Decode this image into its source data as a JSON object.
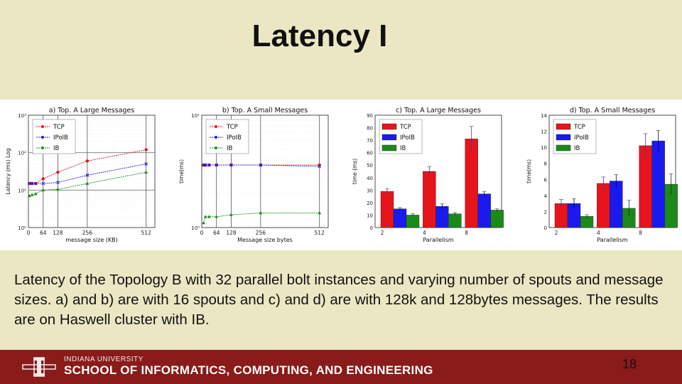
{
  "slide": {
    "title": "Latency I",
    "caption": "Latency of the Topology B with 32 parallel bolt instances and varying number of spouts and message sizes. a) and b) are with 16 spouts and c) and d) are with 128k and 128bytes messages. The results are on Haswell cluster with IB.",
    "footer": {
      "university": "INDIANA UNIVERSITY",
      "school": "SCHOOL OF INFORMATICS, COMPUTING, AND ENGINEERING",
      "page_number": "18"
    }
  },
  "colors": {
    "TCP": "#e8141c",
    "IPoIB": "#1a1aee",
    "IB": "#1b8a1b",
    "footer": "#8a1b1b"
  },
  "chart_data": [
    {
      "type": "line",
      "title": "a) Top. A Large Messages",
      "xlabel": "message size (KB)",
      "ylabel": "Latency (ms) Log",
      "log_y": true,
      "xlim": [
        0,
        550
      ],
      "ylim": [
        1,
        1000
      ],
      "xticks": [
        0,
        64,
        128,
        256,
        512
      ],
      "yticks": [
        1,
        10,
        100,
        1000
      ],
      "ytick_labels": [
        "10⁰",
        "10¹",
        "10²",
        "10³"
      ],
      "legend_position": "top-left",
      "grid": true,
      "series": [
        {
          "name": "TCP",
          "x": [
            4,
            16,
            32,
            64,
            128,
            256,
            512
          ],
          "y": [
            15,
            15,
            15,
            20,
            30,
            60,
            120
          ]
        },
        {
          "name": "IPoIB",
          "x": [
            4,
            16,
            32,
            64,
            128,
            256,
            512
          ],
          "y": [
            15,
            15,
            15,
            15,
            16,
            25,
            50
          ]
        },
        {
          "name": "IB",
          "x": [
            4,
            16,
            32,
            64,
            128,
            256,
            512
          ],
          "y": [
            7,
            7.5,
            8,
            10,
            10.5,
            15,
            30
          ]
        }
      ]
    },
    {
      "type": "line",
      "title": "b) Top. A Small Messages",
      "xlabel": "Message size bytes",
      "ylabel": "time(ms)",
      "log_y": true,
      "xlim": [
        0,
        550
      ],
      "ylim": [
        1,
        10
      ],
      "xticks": [
        0,
        64,
        128,
        256,
        512
      ],
      "yticks": [
        1,
        10
      ],
      "ytick_labels": [
        "10⁰",
        "10¹"
      ],
      "legend_position": "top-left",
      "grid": true,
      "series": [
        {
          "name": "TCP",
          "x": [
            8,
            16,
            32,
            64,
            128,
            256,
            512
          ],
          "y": [
            3.6,
            3.6,
            3.6,
            3.6,
            3.6,
            3.6,
            3.6
          ]
        },
        {
          "name": "IPoIB",
          "x": [
            8,
            16,
            32,
            64,
            128,
            256,
            512
          ],
          "y": [
            3.6,
            3.6,
            3.6,
            3.6,
            3.6,
            3.6,
            3.5
          ]
        },
        {
          "name": "IB",
          "x": [
            8,
            16,
            32,
            64,
            128,
            256,
            512
          ],
          "y": [
            1.1,
            1.25,
            1.25,
            1.25,
            1.3,
            1.35,
            1.35
          ]
        }
      ]
    },
    {
      "type": "bar",
      "title": "c) Top. A Large Messages",
      "xlabel": "Parallelism",
      "ylabel": "time (ms)",
      "ylim": [
        0,
        90
      ],
      "yticks": [
        0,
        10,
        20,
        30,
        40,
        50,
        60,
        70,
        80,
        90
      ],
      "categories": [
        "2",
        "4",
        "8"
      ],
      "legend_position": "top-left",
      "series": [
        {
          "name": "TCP",
          "values": [
            29,
            45,
            71
          ],
          "errors": [
            2,
            4,
            10
          ]
        },
        {
          "name": "IPoIB",
          "values": [
            15,
            17,
            27
          ],
          "errors": [
            1,
            2,
            2
          ]
        },
        {
          "name": "IB",
          "values": [
            10,
            11,
            14
          ],
          "errors": [
            1,
            1,
            1
          ]
        }
      ]
    },
    {
      "type": "bar",
      "title": "d) Top. A Small Messages",
      "xlabel": "Parallelism",
      "ylabel": "time(ms)",
      "ylim": [
        0,
        14
      ],
      "yticks": [
        0,
        2,
        4,
        6,
        8,
        10,
        12,
        14
      ],
      "categories": [
        "2",
        "4",
        "8"
      ],
      "legend_position": "top-left",
      "series": [
        {
          "name": "TCP",
          "values": [
            3,
            5.5,
            10.2
          ],
          "errors": [
            0.5,
            0.8,
            1.5
          ]
        },
        {
          "name": "IPoIB",
          "values": [
            3,
            5.8,
            10.8
          ],
          "errors": [
            0.6,
            0.8,
            1.3
          ]
        },
        {
          "name": "IB",
          "values": [
            1.4,
            2.4,
            5.4
          ],
          "errors": [
            0.2,
            1.0,
            1.3
          ]
        }
      ]
    }
  ]
}
